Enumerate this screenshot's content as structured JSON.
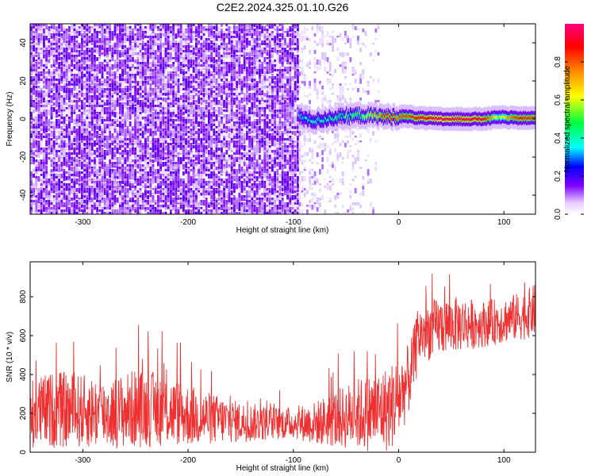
{
  "title": "C2E2.2024.325.01.10.G26",
  "colorbar": {
    "label": "Normalized spectral amplitude",
    "ticks": [
      "0.0",
      "0.2",
      "0.4",
      "0.6",
      "0.8"
    ]
  },
  "chart_data": [
    {
      "type": "heatmap",
      "title": "C2E2.2024.325.01.10.G26",
      "xlabel": "Height of straight line (km)",
      "ylabel": "Frequency (Hz)",
      "xlim": [
        -350,
        130
      ],
      "ylim": [
        -50,
        50
      ],
      "x_ticks": [
        -300,
        -200,
        -100,
        0,
        100
      ],
      "y_ticks": [
        -40,
        -20,
        0,
        20,
        40
      ],
      "x_tick_labels": [
        "-300",
        "-200",
        "-100",
        "0",
        "100"
      ],
      "y_tick_labels": [
        "-40",
        "-20",
        "0",
        "20",
        "40"
      ],
      "colorbar_range": [
        0,
        1
      ],
      "regions": [
        {
          "x": [
            -350,
            -95
          ],
          "y": [
            -50,
            50
          ],
          "amplitude": "0.1–0.2 noise"
        },
        {
          "x": [
            -95,
            -20
          ],
          "y": [
            -50,
            50
          ],
          "amplitude": "0.0–0.1 sparse"
        }
      ],
      "signal_band": [
        {
          "x": -95,
          "f": 1.0,
          "amp": 0.35
        },
        {
          "x": -80,
          "f": -1.0,
          "amp": 0.4
        },
        {
          "x": -65,
          "f": 0.5,
          "amp": 0.45
        },
        {
          "x": -50,
          "f": 1.5,
          "amp": 0.45
        },
        {
          "x": -35,
          "f": 2.0,
          "amp": 0.5
        },
        {
          "x": -20,
          "f": 1.5,
          "amp": 0.75
        },
        {
          "x": -10,
          "f": 1.0,
          "amp": 0.85
        },
        {
          "x": 5,
          "f": 1.5,
          "amp": 0.8
        },
        {
          "x": 20,
          "f": 0.5,
          "amp": 0.9
        },
        {
          "x": 40,
          "f": 0.0,
          "amp": 0.95
        },
        {
          "x": 60,
          "f": 0.0,
          "amp": 0.95
        },
        {
          "x": 80,
          "f": 0.0,
          "amp": 0.9
        },
        {
          "x": 95,
          "f": 1.0,
          "amp": 0.55
        },
        {
          "x": 110,
          "f": 0.5,
          "amp": 0.85
        },
        {
          "x": 130,
          "f": 0.5,
          "amp": 0.85
        }
      ]
    },
    {
      "type": "area",
      "xlabel": "Height of straight line (km)",
      "ylabel": "SNR (10 * v/v)",
      "xlim": [
        -350,
        130
      ],
      "ylim": [
        0,
        980
      ],
      "x_ticks": [
        -300,
        -200,
        -100,
        0,
        100
      ],
      "y_ticks": [
        0,
        200,
        400,
        600,
        800
      ],
      "x_tick_labels": [
        "-300",
        "-200",
        "-100",
        "0",
        "100"
      ],
      "y_tick_labels": [
        "0",
        "200",
        "400",
        "600",
        "800"
      ],
      "series": [
        {
          "x": [
            -350,
            -325,
            -300,
            -275,
            -250,
            -225,
            -200,
            -175,
            -150,
            -125,
            -100,
            -80,
            -60,
            -40,
            -20,
            -10,
            0,
            10,
            20,
            40,
            60,
            80,
            100,
            120,
            130
          ],
          "y_high": [
            380,
            420,
            400,
            380,
            430,
            410,
            350,
            300,
            260,
            240,
            230,
            260,
            320,
            380,
            420,
            450,
            500,
            560,
            760,
            800,
            800,
            780,
            800,
            830,
            870
          ],
          "y_low": [
            20,
            20,
            20,
            20,
            20,
            30,
            30,
            40,
            50,
            60,
            70,
            40,
            20,
            10,
            0,
            0,
            50,
            200,
            450,
            500,
            520,
            540,
            560,
            580,
            600
          ]
        }
      ]
    }
  ]
}
